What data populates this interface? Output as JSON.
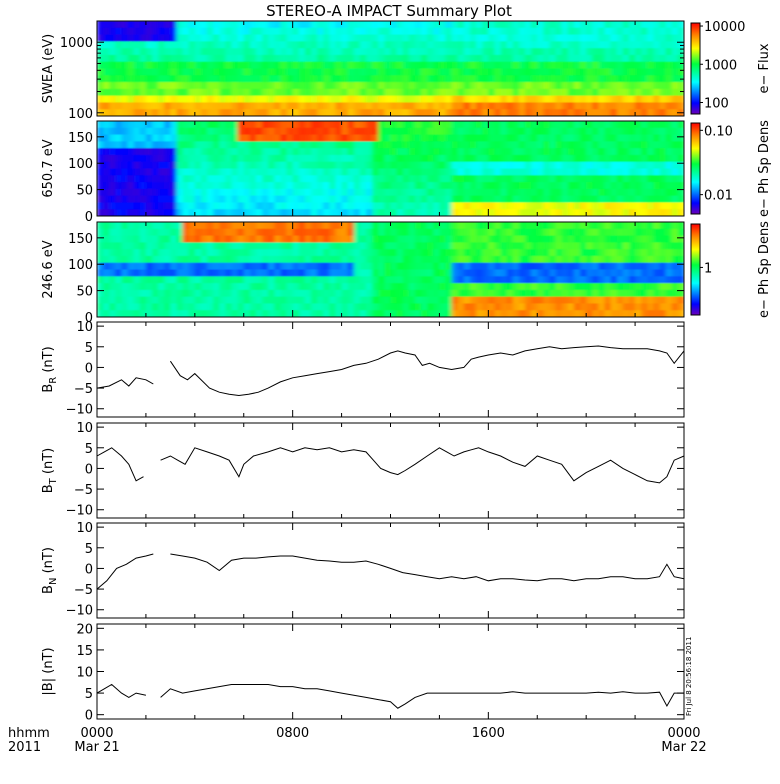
{
  "title": "STEREO-A IMPACT Summary Plot",
  "timestamp": "Fri Jul 8 20:56:18 2011",
  "time_axis": {
    "corner_top": "hhmm",
    "corner_bottom": "2011",
    "ticks": [
      {
        "hours": 0,
        "label": "0000",
        "sub": "Mar 21"
      },
      {
        "hours": 8,
        "label": "0800",
        "sub": ""
      },
      {
        "hours": 16,
        "label": "1600",
        "sub": ""
      },
      {
        "hours": 24,
        "label": "0000",
        "sub": "Mar 22"
      }
    ]
  },
  "chart_data": [
    {
      "type": "heatmap",
      "name": "swea",
      "ylabel": "SWEA (eV)",
      "yscale": "log",
      "ylim": [
        90,
        2000
      ],
      "yticks": [
        100,
        1000
      ],
      "yticklabels": [
        "100",
        "1000"
      ],
      "colorbar": {
        "label": "e− Flux",
        "scale": "log",
        "range": [
          50,
          12000
        ],
        "ticks": [
          100,
          1000,
          10000
        ],
        "ticklabels": [
          "100",
          "1000",
          "10000"
        ]
      }
    },
    {
      "type": "heatmap",
      "name": "pad-650",
      "ylabel": "650.7 eV",
      "ylim": [
        0,
        180
      ],
      "yticks": [
        0,
        50,
        100,
        150
      ],
      "yticklabels": [
        "0",
        "50",
        "100",
        "150"
      ],
      "colorbar": {
        "label": "e− Ph Sp Dens",
        "scale": "log",
        "range": [
          0.005,
          0.13
        ],
        "ticks": [
          0.01,
          0.1
        ],
        "ticklabels": [
          "0.01",
          "0.10"
        ]
      }
    },
    {
      "type": "heatmap",
      "name": "pad-246",
      "ylabel": "246.6 eV",
      "ylim": [
        0,
        180
      ],
      "yticks": [
        0,
        50,
        100,
        150
      ],
      "yticklabels": [
        "0",
        "50",
        "100",
        "150"
      ],
      "colorbar": {
        "label": "e− Ph Sp Dens",
        "scale": "log",
        "range": [
          0.3,
          3
        ],
        "ticks": [
          1
        ],
        "ticklabels": [
          "1"
        ]
      }
    },
    {
      "type": "line",
      "name": "br",
      "ylabel_main": "B",
      "ylabel_sub": "R",
      "ylabel_tail": " (nT)",
      "ylim": [
        -12,
        11
      ],
      "yticks": [
        -10,
        -5,
        0,
        5,
        10
      ],
      "yticklabels": [
        "−10",
        "−5",
        "0",
        "5",
        "10"
      ],
      "x": [
        0.0,
        0.5,
        1.0,
        1.3,
        1.6,
        2.0,
        2.3,
        2.6,
        3.0,
        3.4,
        3.7,
        4.0,
        4.6,
        5.0,
        5.4,
        5.8,
        6.2,
        6.6,
        7.0,
        7.5,
        8.0,
        8.5,
        9.0,
        9.5,
        10.0,
        10.5,
        11.0,
        11.5,
        12.0,
        12.3,
        12.6,
        13.0,
        13.3,
        13.6,
        14.0,
        14.5,
        15.0,
        15.3,
        15.6,
        16.0,
        16.5,
        17.0,
        17.5,
        18.0,
        18.5,
        19.0,
        19.5,
        20.0,
        20.5,
        21.0,
        21.5,
        22.0,
        22.5,
        23.0,
        23.3,
        23.6,
        24.0
      ],
      "values": [
        -5,
        -4.5,
        -3,
        -4.5,
        -2.5,
        -3,
        -4,
        null,
        1.5,
        -2,
        -3,
        -1.5,
        -5,
        -6,
        -6.5,
        -6.8,
        -6.5,
        -6,
        -5,
        -3.5,
        -2.5,
        -2,
        -1.5,
        -1,
        -0.5,
        0.5,
        1,
        2,
        3.5,
        4,
        3.5,
        3,
        0.5,
        1,
        0,
        -0.5,
        0,
        2,
        2.5,
        3,
        3.5,
        3,
        4,
        4.5,
        5,
        4.5,
        4.8,
        5,
        5.2,
        4.8,
        4.5,
        4.5,
        4.5,
        4,
        3.5,
        1,
        4
      ]
    },
    {
      "type": "line",
      "name": "bt",
      "ylabel_main": "B",
      "ylabel_sub": "T",
      "ylabel_tail": " (nT)",
      "ylim": [
        -12,
        11
      ],
      "yticks": [
        -10,
        -5,
        0,
        5,
        10
      ],
      "yticklabels": [
        "−10",
        "−5",
        "0",
        "5",
        "10"
      ],
      "x": [
        0.0,
        0.3,
        0.6,
        1.0,
        1.3,
        1.6,
        1.9,
        2.3,
        2.6,
        3.0,
        3.3,
        3.6,
        4.0,
        4.5,
        5.0,
        5.4,
        5.8,
        6.0,
        6.4,
        7.0,
        7.5,
        8.0,
        8.5,
        9.0,
        9.5,
        10.0,
        10.5,
        11.0,
        11.3,
        11.6,
        12.0,
        12.3,
        12.6,
        13.0,
        13.5,
        14.0,
        14.3,
        14.6,
        15.0,
        15.3,
        15.6,
        16.0,
        16.5,
        17.0,
        17.5,
        18.0,
        18.5,
        19.0,
        19.5,
        20.0,
        20.5,
        21.0,
        21.5,
        22.0,
        22.5,
        23.0,
        23.3,
        23.6,
        24.0
      ],
      "values": [
        3,
        4,
        5,
        3,
        1,
        -3,
        -2,
        null,
        2,
        3,
        2,
        1,
        5,
        4,
        3,
        2,
        -2,
        1,
        3,
        4,
        5,
        4,
        5,
        4.5,
        5,
        4,
        4.5,
        4,
        2,
        0,
        -1,
        -1.5,
        -0.5,
        1,
        3,
        5,
        4,
        3,
        4,
        4.5,
        5,
        4,
        3,
        1.5,
        0.5,
        3,
        2,
        1,
        -3,
        -1,
        0.5,
        2,
        0,
        -1.5,
        -3,
        -3.5,
        -2,
        2,
        3
      ]
    },
    {
      "type": "line",
      "name": "bn",
      "ylabel_main": "B",
      "ylabel_sub": "N",
      "ylabel_tail": " (nT)",
      "ylim": [
        -12,
        11
      ],
      "yticks": [
        -10,
        -5,
        0,
        5,
        10
      ],
      "yticklabels": [
        "−10",
        "−5",
        "0",
        "5",
        "10"
      ],
      "x": [
        0.0,
        0.4,
        0.8,
        1.2,
        1.6,
        2.0,
        2.3,
        2.6,
        3.0,
        3.5,
        4.0,
        4.5,
        5.0,
        5.5,
        6.0,
        6.5,
        7.0,
        7.5,
        8.0,
        8.5,
        9.0,
        9.5,
        10.0,
        10.5,
        11.0,
        11.5,
        12.0,
        12.5,
        13.0,
        13.5,
        14.0,
        14.5,
        15.0,
        15.5,
        16.0,
        16.5,
        17.0,
        17.5,
        18.0,
        18.5,
        19.0,
        19.5,
        20.0,
        20.5,
        21.0,
        21.5,
        22.0,
        22.5,
        23.0,
        23.3,
        23.6,
        24.0
      ],
      "values": [
        -5,
        -3,
        0,
        1,
        2.5,
        3,
        3.5,
        null,
        3.5,
        3,
        2.5,
        1.5,
        -0.5,
        2,
        2.5,
        2.5,
        2.8,
        3,
        3,
        2.5,
        2,
        1.8,
        1.5,
        1.5,
        1.8,
        1,
        0,
        -1,
        -1.5,
        -2,
        -2.5,
        -2,
        -2.5,
        -2,
        -3,
        -2.5,
        -2.5,
        -2.8,
        -3,
        -2.5,
        -2.5,
        -3,
        -2.5,
        -2.5,
        -2,
        -2,
        -2.5,
        -2.5,
        -2,
        1,
        -2,
        -2.5
      ]
    },
    {
      "type": "line",
      "name": "bmag",
      "ylabel_main": "|B|",
      "ylabel_sub": "",
      "ylabel_tail": " (nT)",
      "ylim": [
        -1,
        21
      ],
      "yticks": [
        0,
        5,
        10,
        15,
        20
      ],
      "yticklabels": [
        "0",
        "5",
        "10",
        "15",
        "20"
      ],
      "x": [
        0.0,
        0.3,
        0.6,
        1.0,
        1.3,
        1.6,
        2.0,
        2.3,
        2.6,
        3.0,
        3.5,
        4.0,
        4.5,
        5.0,
        5.5,
        6.0,
        6.5,
        7.0,
        7.5,
        8.0,
        8.5,
        9.0,
        9.5,
        10.0,
        10.5,
        11.0,
        11.5,
        12.0,
        12.3,
        12.6,
        13.0,
        13.5,
        14.0,
        14.5,
        15.0,
        15.5,
        16.0,
        16.5,
        17.0,
        17.5,
        18.0,
        18.5,
        19.0,
        19.5,
        20.0,
        20.5,
        21.0,
        21.5,
        22.0,
        22.5,
        23.0,
        23.3,
        23.6,
        24.0
      ],
      "values": [
        5,
        6,
        7,
        5,
        4,
        5,
        4.5,
        null,
        4,
        6,
        5,
        5.5,
        6,
        6.5,
        7,
        7,
        7,
        7,
        6.5,
        6.5,
        6,
        6,
        5.5,
        5,
        4.5,
        4,
        3.5,
        3,
        1.5,
        2.5,
        4,
        5,
        5,
        5,
        5,
        5,
        5,
        5,
        5.3,
        5,
        5,
        5,
        5,
        5,
        5,
        5.2,
        5,
        5.3,
        5,
        5,
        5.2,
        2,
        5,
        5
      ]
    }
  ]
}
